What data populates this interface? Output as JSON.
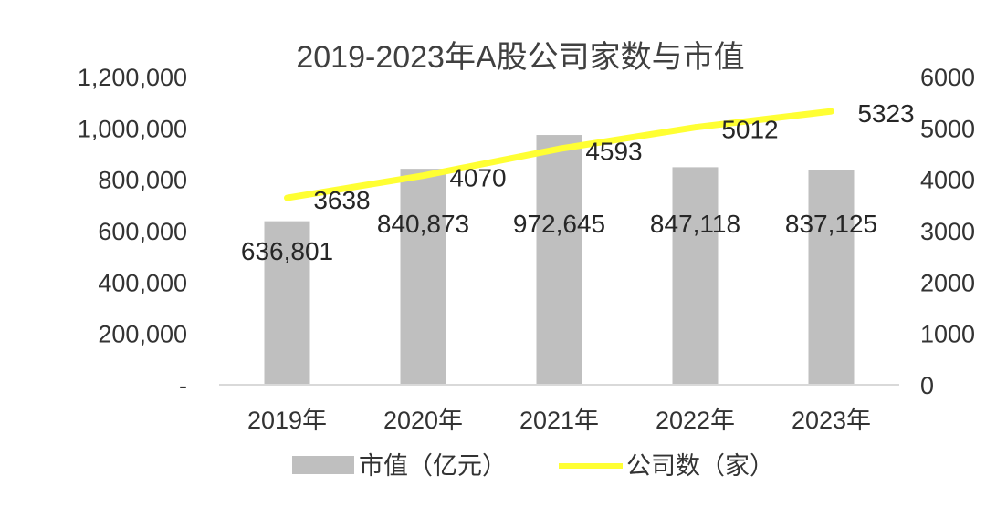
{
  "chart_data": {
    "type": "bar",
    "title": "2019-2023年A股公司家数与市值",
    "categories": [
      "2019年",
      "2020年",
      "2021年",
      "2022年",
      "2023年"
    ],
    "series": [
      {
        "name": "市值（亿元）",
        "type": "bar",
        "axis": "left",
        "color": "#bfbfbf",
        "values": [
          636801,
          840873,
          972645,
          847118,
          837125
        ],
        "labels": [
          "636,801",
          "840,873",
          "972,645",
          "847,118",
          "837,125"
        ]
      },
      {
        "name": "公司数（家）",
        "type": "line",
        "axis": "right",
        "color": "#ffff33",
        "values": [
          3638,
          4070,
          4593,
          5012,
          5323
        ],
        "labels": [
          "3638",
          "4070",
          "4593",
          "5012",
          "5323"
        ]
      }
    ],
    "y_left": {
      "range": [
        0,
        1200000
      ],
      "ticks": [
        "-",
        "200,000",
        "400,000",
        "600,000",
        "800,000",
        "1,000,000",
        "1,200,000"
      ]
    },
    "y_right": {
      "range": [
        0,
        6000
      ],
      "ticks": [
        "0",
        "1000",
        "2000",
        "3000",
        "4000",
        "5000",
        "6000"
      ]
    },
    "grid": false,
    "legend_position": "bottom"
  }
}
